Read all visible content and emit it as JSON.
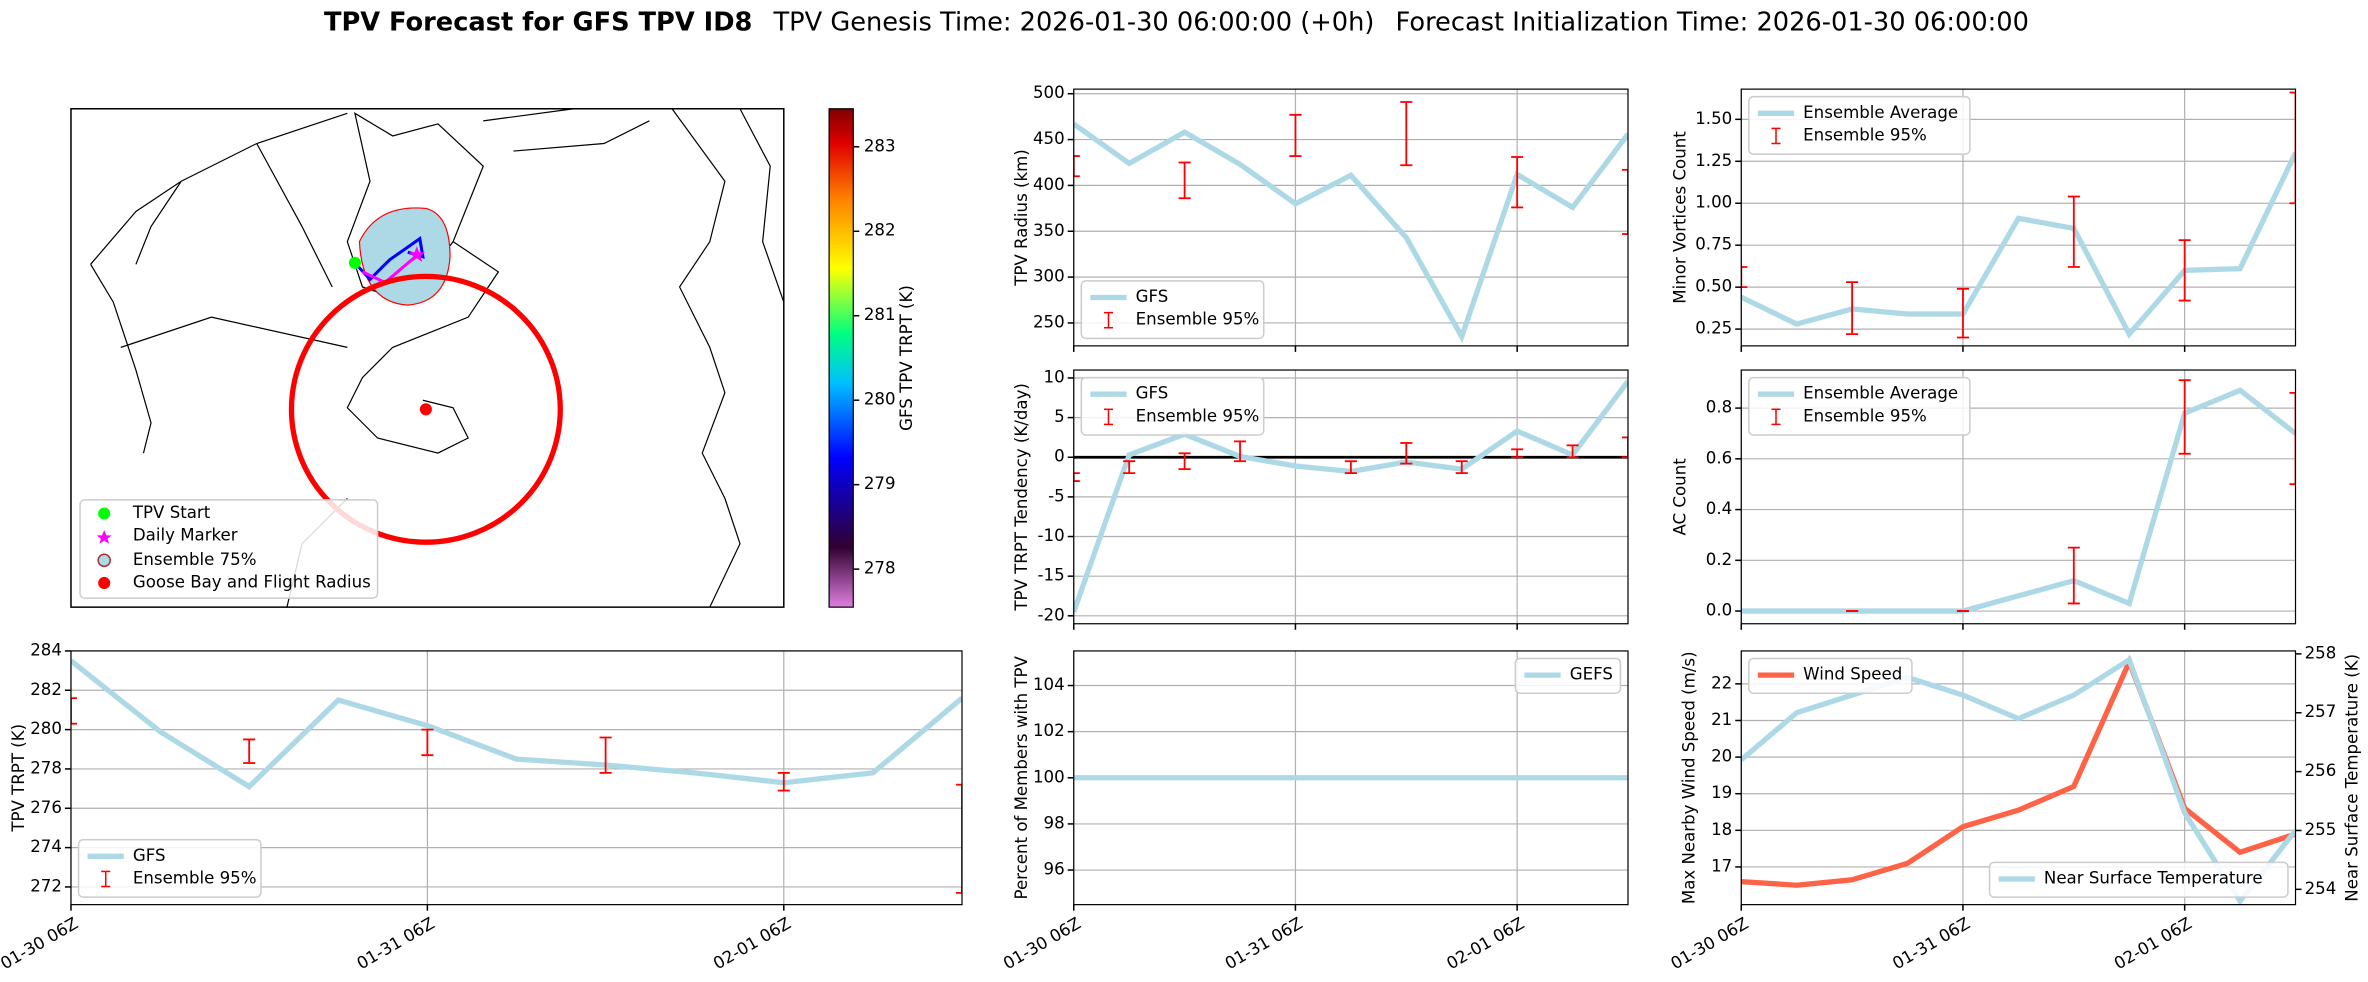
{
  "header": {
    "title": "TPV Forecast for GFS TPV ID8",
    "genesis": "TPV Genesis Time: 2026-01-30 06:00:00 (+0h)",
    "init": "Forecast Initialization Time: 2026-01-30 06:00:00"
  },
  "chart_data": [
    {
      "type": "map",
      "legend": "lower left",
      "legend_items": [
        "TPV Start",
        "Daily Marker",
        "Ensemble 75%",
        "Goose Bay and Flight Radius"
      ],
      "colorbar_label": "GFS TPV TRPT (K)",
      "colorbar_lim": [
        277.55,
        283.45
      ],
      "colorbar_ticks": [
        278,
        279,
        280,
        281,
        282,
        283
      ]
    },
    {
      "type": "line",
      "ylabel": "TPV Radius (km)",
      "x": [
        0,
        6,
        12,
        18,
        24,
        30,
        36,
        42,
        48,
        54,
        60
      ],
      "xlim": [
        0,
        60
      ],
      "xticks": [
        0,
        24,
        48
      ],
      "ylim": [
        225,
        505
      ],
      "yticks": [
        250,
        300,
        350,
        400,
        450,
        500
      ],
      "grid": true,
      "legend": "lower left",
      "series": [
        {
          "name": "GFS",
          "color": "#add8e6",
          "values": [
            467,
            424,
            458,
            423,
            380,
            411,
            343,
            235,
            412,
            376,
            456
          ]
        }
      ],
      "errorbars": {
        "name": "Ensemble 95%",
        "color": "#ff0000",
        "low": [
          410,
          null,
          386,
          null,
          432,
          null,
          422,
          null,
          376,
          null,
          347
        ],
        "high": [
          432,
          null,
          425,
          null,
          477,
          null,
          491,
          null,
          431,
          null,
          417
        ]
      }
    },
    {
      "type": "line",
      "ylabel": "TPV TRPT Tendency (K/day)",
      "x": [
        0,
        6,
        12,
        18,
        24,
        30,
        36,
        42,
        48,
        54,
        60
      ],
      "xlim": [
        0,
        60
      ],
      "xticks": [
        0,
        24,
        48
      ],
      "ylim": [
        -21,
        11
      ],
      "yticks": [
        -20,
        -15,
        -10,
        -5,
        0,
        5,
        10
      ],
      "grid": true,
      "zero_line": true,
      "legend": "upper left",
      "series": [
        {
          "name": "GFS",
          "color": "#add8e6",
          "values": [
            -19.5,
            0.3,
            2.9,
            0.1,
            -1.1,
            -1.8,
            -0.6,
            -1.5,
            3.3,
            0.3,
            9.6
          ]
        }
      ],
      "errorbars": {
        "name": "Ensemble 95%",
        "color": "#ff0000",
        "low": [
          -3,
          -2,
          -1.5,
          -0.5,
          null,
          -2,
          -0.8,
          -2,
          0,
          0,
          0
        ],
        "high": [
          -2,
          -0.5,
          0.5,
          2,
          null,
          -0.5,
          1.8,
          -0.5,
          1,
          1.5,
          2.5
        ]
      }
    },
    {
      "type": "line",
      "ylabel": "Minor Vortices Count",
      "x": [
        0,
        6,
        12,
        18,
        24,
        30,
        36,
        42,
        48,
        54,
        60
      ],
      "xlim": [
        0,
        60
      ],
      "xticks": [
        0,
        24,
        48
      ],
      "ylim": [
        0.15,
        1.68
      ],
      "yticks": [
        0.25,
        0.5,
        0.75,
        1.0,
        1.25,
        1.5
      ],
      "ytick_labels": [
        "0.25",
        "0.50",
        "0.75",
        "1.00",
        "1.25",
        "1.50"
      ],
      "grid": true,
      "legend": "upper left",
      "series": [
        {
          "name": "Ensemble Average",
          "color": "#add8e6",
          "values": [
            0.44,
            0.28,
            0.37,
            0.34,
            0.34,
            0.91,
            0.85,
            0.22,
            0.6,
            0.61,
            1.3
          ]
        }
      ],
      "errorbars": {
        "name": "Ensemble 95%",
        "color": "#ff0000",
        "low": [
          0.5,
          null,
          0.22,
          null,
          0.2,
          null,
          0.62,
          null,
          0.42,
          null,
          1.0
        ],
        "high": [
          0.62,
          null,
          0.53,
          null,
          0.49,
          null,
          1.04,
          null,
          0.78,
          null,
          1.66
        ]
      }
    },
    {
      "type": "line",
      "ylabel": "AC Count",
      "x": [
        0,
        6,
        12,
        18,
        24,
        30,
        36,
        42,
        48,
        54,
        60
      ],
      "xlim": [
        0,
        60
      ],
      "xticks": [
        0,
        24,
        48
      ],
      "ylim": [
        -0.05,
        0.95
      ],
      "yticks": [
        0,
        0.2,
        0.4,
        0.6,
        0.8
      ],
      "ytick_labels": [
        "0.0",
        "0.2",
        "0.4",
        "0.6",
        "0.8"
      ],
      "grid": true,
      "legend": "upper left",
      "series": [
        {
          "name": "Ensemble Average",
          "color": "#add8e6",
          "values": [
            0,
            0,
            0,
            0,
            0,
            0.06,
            0.12,
            0.03,
            0.78,
            0.87,
            0.7
          ]
        }
      ],
      "errorbars": {
        "name": "Ensemble 95%",
        "color": "#ff0000",
        "low": [
          null,
          null,
          0,
          null,
          0,
          null,
          0.03,
          null,
          0.62,
          null,
          0.5
        ],
        "high": [
          null,
          null,
          0,
          null,
          0,
          null,
          0.25,
          null,
          0.91,
          null,
          0.86
        ]
      }
    },
    {
      "type": "line",
      "ylabel": "TPV TRPT (K)",
      "x": [
        0,
        6,
        12,
        18,
        24,
        30,
        36,
        42,
        48,
        54,
        60
      ],
      "xlim": [
        0,
        60
      ],
      "xticks": [
        {
          "value": 0,
          "label": "01-30 06Z"
        },
        {
          "value": 24,
          "label": "01-31 06Z"
        },
        {
          "value": 48,
          "label": "02-01 06Z"
        }
      ],
      "ylim": [
        271.1,
        284
      ],
      "yticks": [
        272,
        274,
        276,
        278,
        280,
        282,
        284
      ],
      "grid": true,
      "legend": "lower left",
      "series": [
        {
          "name": "GFS",
          "color": "#add8e6",
          "values": [
            283.5,
            279.9,
            277.1,
            281.5,
            280.2,
            278.5,
            278.2,
            277.8,
            277.3,
            277.8,
            281.6
          ]
        }
      ],
      "errorbars": {
        "name": "Ensemble 95%",
        "color": "#ff0000",
        "low": [
          280.3,
          null,
          278.3,
          null,
          278.7,
          null,
          277.8,
          null,
          276.9,
          null,
          271.7
        ],
        "high": [
          281.6,
          null,
          279.5,
          null,
          280,
          null,
          279.6,
          null,
          277.8,
          null,
          277.2
        ]
      }
    },
    {
      "type": "line",
      "ylabel": "Percent of Members with TPV",
      "x": [
        0,
        6,
        12,
        18,
        24,
        30,
        36,
        42,
        48,
        54,
        60
      ],
      "xlim": [
        0,
        60
      ],
      "xticks": [
        {
          "value": 0,
          "label": "01-30 06Z"
        },
        {
          "value": 24,
          "label": "01-31 06Z"
        },
        {
          "value": 48,
          "label": "02-01 06Z"
        }
      ],
      "ylim": [
        94.5,
        105.5
      ],
      "yticks": [
        96,
        98,
        100,
        102,
        104
      ],
      "grid": true,
      "legend": "upper right",
      "series": [
        {
          "name": "GEFS",
          "color": "#add8e6",
          "values": [
            100,
            100,
            100,
            100,
            100,
            100,
            100,
            100,
            100,
            100,
            100
          ]
        }
      ]
    },
    {
      "type": "line",
      "ylabel": "Max Nearby Wind Speed (m/s)",
      "ylabel_color": "#ff6347",
      "y2label": "Near Surface Temperature (K)",
      "y2label_color": "#4169e1",
      "x": [
        0,
        6,
        12,
        18,
        24,
        30,
        36,
        42,
        48,
        54,
        60
      ],
      "xlim": [
        0,
        60
      ],
      "xticks": [
        {
          "value": 0,
          "label": "01-30 06Z"
        },
        {
          "value": 24,
          "label": "01-31 06Z"
        },
        {
          "value": 48,
          "label": "02-01 06Z"
        }
      ],
      "ylim": [
        15.97,
        22.9
      ],
      "yticks": [
        17,
        18,
        19,
        20,
        21,
        22
      ],
      "y2lim": [
        253.74,
        258.05
      ],
      "y2ticks": [
        254,
        255,
        256,
        257,
        258
      ],
      "grid": true,
      "legend": "upper left",
      "legend2": "lower right",
      "series": [
        {
          "name": "Wind Speed",
          "color": "#ff6347",
          "values": [
            16.6,
            16.5,
            16.65,
            17.1,
            18.1,
            18.55,
            19.2,
            22.6,
            18.6,
            17.4,
            17.9
          ]
        },
        {
          "name": "Near Surface Temperature",
          "color": "#add8e6",
          "axis": "y2",
          "values": [
            256.2,
            257.0,
            257.3,
            257.6,
            257.3,
            256.9,
            257.3,
            257.9,
            255.3,
            253.8,
            255.0
          ]
        }
      ]
    }
  ]
}
